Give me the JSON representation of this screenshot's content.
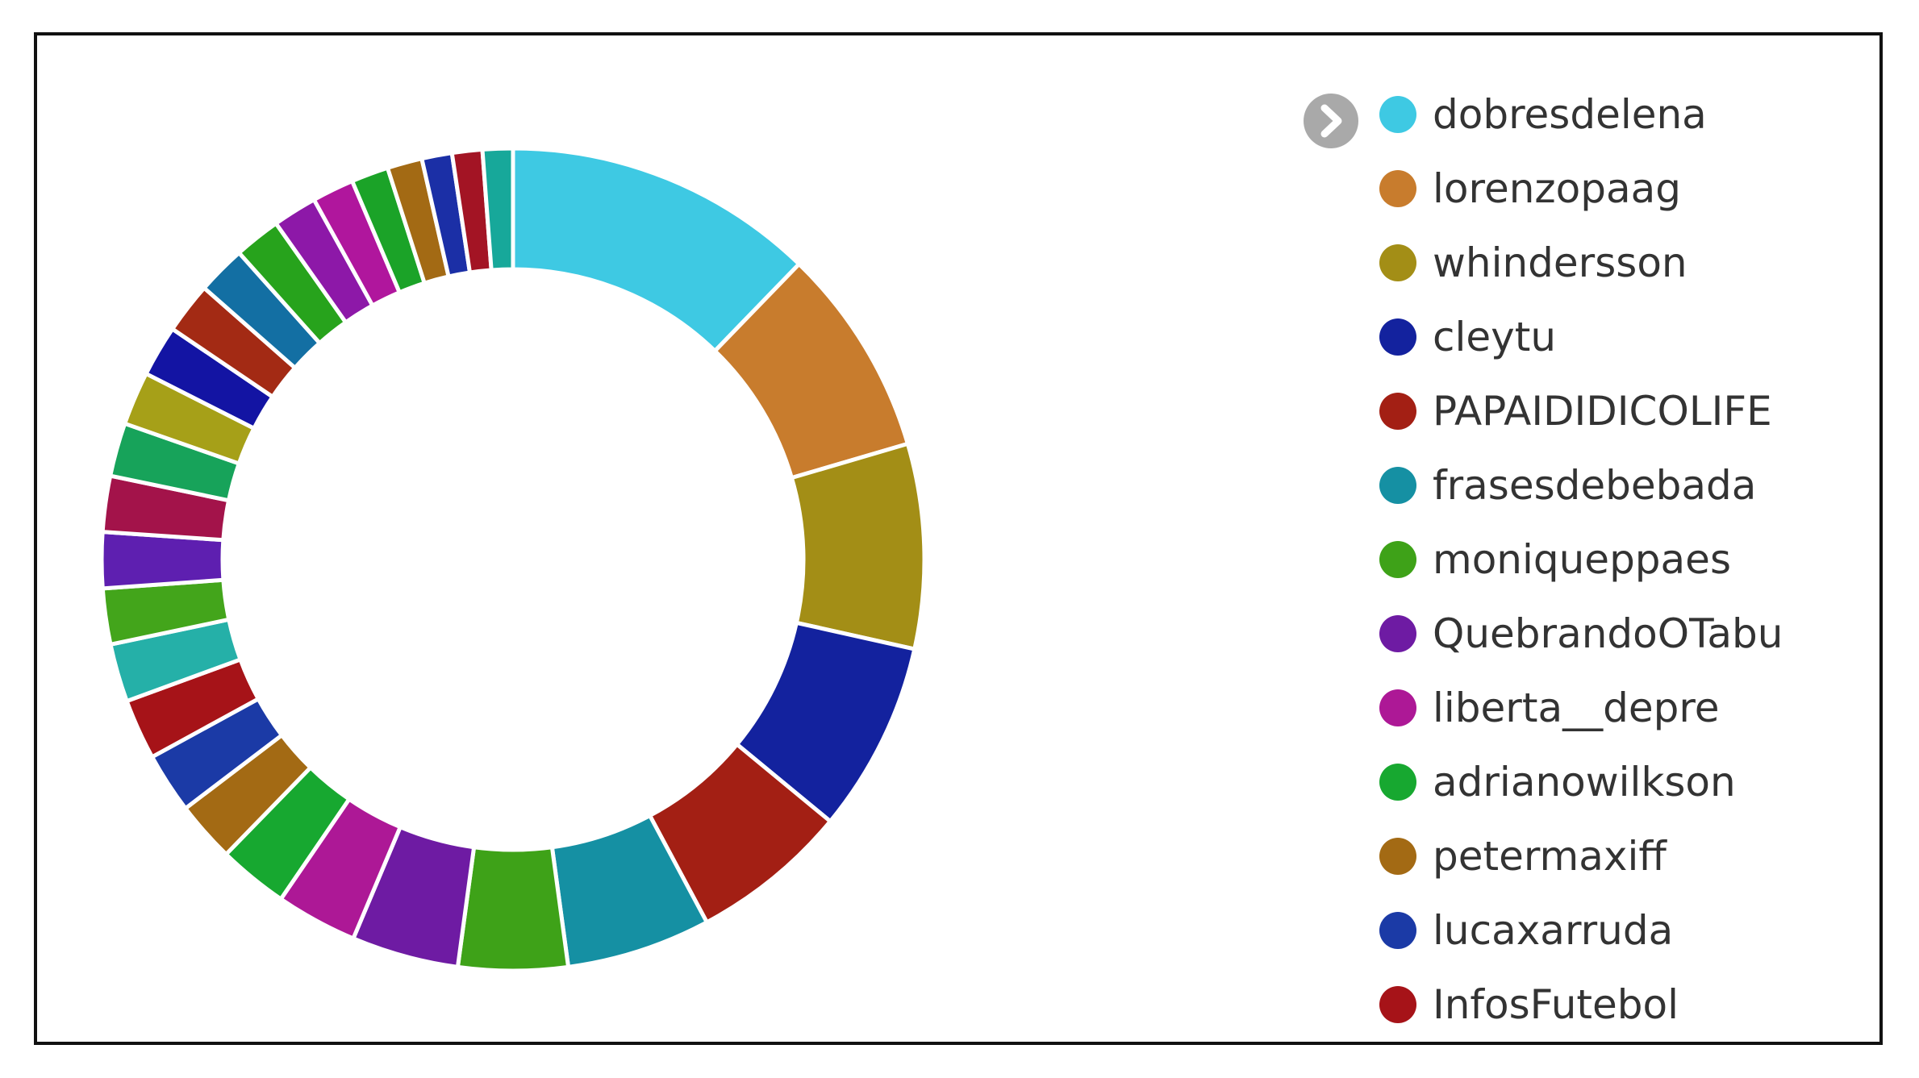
{
  "chart_data": {
    "type": "pie",
    "donut": true,
    "legend_position": "right",
    "legend_scroll_toggle": "chevron-right-icon",
    "slices": [
      {
        "label": "dobresdelena",
        "value": 13.4,
        "color": "#3ec9e3"
      },
      {
        "label": "lorenzopaag",
        "value": 9.0,
        "color": "#c87c2d"
      },
      {
        "label": "whindersson",
        "value": 8.8,
        "color": "#a38e16"
      },
      {
        "label": "cleytu",
        "value": 8.2,
        "color": "#13229e"
      },
      {
        "label": "PAPAIDIDICOLIFE",
        "value": 6.8,
        "color": "#a31f14"
      },
      {
        "label": "frasesdebebada",
        "value": 6.2,
        "color": "#1590a3"
      },
      {
        "label": "moniqueppaes",
        "value": 4.7,
        "color": "#3ea218"
      },
      {
        "label": "QuebrandoOTabu",
        "value": 4.6,
        "color": "#6e1ba3"
      },
      {
        "label": "liberta__depre",
        "value": 3.5,
        "color": "#ad1896"
      },
      {
        "label": "adrianowilkson",
        "value": 3.0,
        "color": "#17a830"
      },
      {
        "label": "petermaxiff",
        "value": 2.6,
        "color": "#a36a14"
      },
      {
        "label": "lucaxarruda",
        "value": 2.6,
        "color": "#1b3aa6"
      },
      {
        "label": "InfosFutebol",
        "value": 2.6,
        "color": "#a61318"
      },
      {
        "label": "",
        "value": 2.5,
        "color": "#25b0a8"
      },
      {
        "label": "",
        "value": 2.4,
        "color": "#43a51b"
      },
      {
        "label": "",
        "value": 2.4,
        "color": "#5e1fb0"
      },
      {
        "label": "",
        "value": 2.4,
        "color": "#a3134a"
      },
      {
        "label": "",
        "value": 2.3,
        "color": "#17a35a"
      },
      {
        "label": "",
        "value": 2.3,
        "color": "#a6a018"
      },
      {
        "label": "",
        "value": 2.2,
        "color": "#1314a3"
      },
      {
        "label": "",
        "value": 2.2,
        "color": "#a32a14"
      },
      {
        "label": "",
        "value": 2.1,
        "color": "#136fa3"
      },
      {
        "label": "",
        "value": 2.0,
        "color": "#27a31c"
      },
      {
        "label": "",
        "value": 1.9,
        "color": "#8d18a8"
      },
      {
        "label": "",
        "value": 1.8,
        "color": "#b0169d"
      },
      {
        "label": "",
        "value": 1.6,
        "color": "#1ba328"
      },
      {
        "label": "",
        "value": 1.5,
        "color": "#a36a14"
      },
      {
        "label": "",
        "value": 1.3,
        "color": "#1b2fa6"
      },
      {
        "label": "",
        "value": 1.3,
        "color": "#a31424"
      },
      {
        "label": "",
        "value": 1.3,
        "color": "#17a89a"
      }
    ]
  }
}
